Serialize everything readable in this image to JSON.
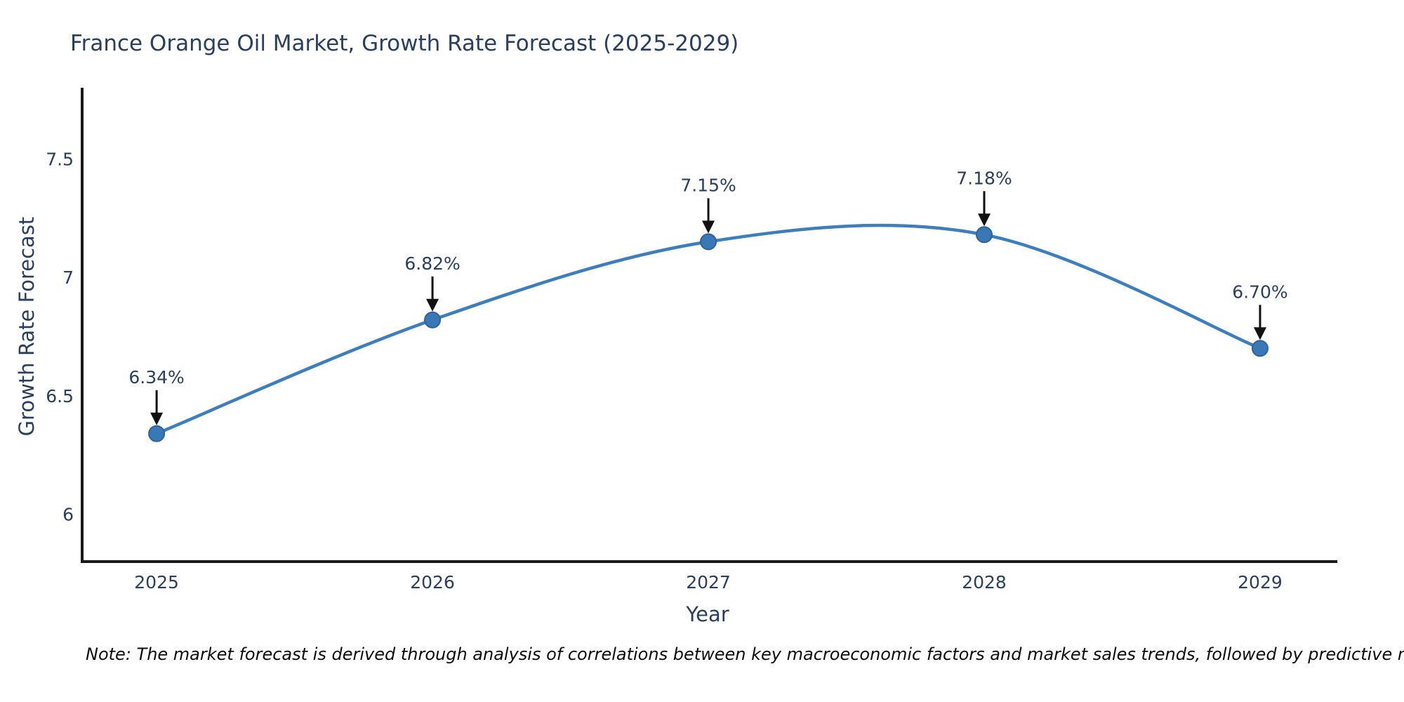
{
  "chart": {
    "title": "France Orange Oil Market, Growth Rate Forecast (2025-2029)",
    "xlabel": "Year",
    "ylabel": "Growth Rate Forecast",
    "note": "Note: The market forecast is derived through analysis of correlations between key macroeconomic factors and market sales trends, followed by predictive modeling to project future sales"
  },
  "chart_data": {
    "type": "line",
    "title": "France Orange Oil Market, Growth Rate Forecast (2025-2029)",
    "xlabel": "Year",
    "ylabel": "Growth Rate Forecast",
    "x": [
      2025,
      2026,
      2027,
      2028,
      2029
    ],
    "values": [
      6.34,
      6.82,
      7.15,
      7.18,
      6.7
    ],
    "point_labels": [
      "6.34%",
      "6.82%",
      "7.15%",
      "7.18%",
      "6.70%"
    ],
    "x_tick_labels": [
      "2025",
      "2026",
      "2027",
      "2028",
      "2029"
    ],
    "y_ticks": [
      6,
      6.5,
      7,
      7.5
    ],
    "y_tick_labels": [
      "6",
      "6.5",
      "7",
      "7.5"
    ],
    "xlim": [
      2024.73,
      2029.28
    ],
    "ylim": [
      5.8,
      7.8
    ],
    "grid": false,
    "legend": false,
    "line_shape": "spline",
    "annotations_have_arrows": true,
    "colors": {
      "line": "#3c7ebf",
      "marker_fill": "#3a78b5",
      "marker_edge": "#2d639c",
      "axis": "#191919",
      "tick_text": "#2a3f5f",
      "arrow": "#111111"
    }
  }
}
